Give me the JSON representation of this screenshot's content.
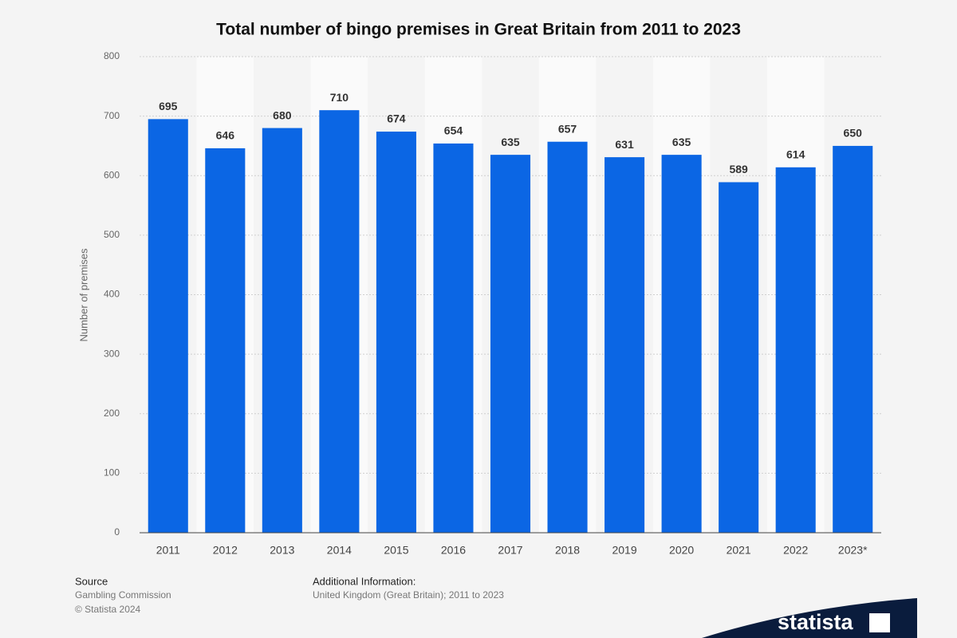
{
  "chart_data": {
    "type": "bar",
    "title": "Total number of bingo premises in Great Britain from 2011 to 2023",
    "y_label": "Number of premises",
    "categories": [
      "2011",
      "2012",
      "2013",
      "2014",
      "2015",
      "2016",
      "2017",
      "2018",
      "2019",
      "2020",
      "2021",
      "2022",
      "2023*"
    ],
    "values": [
      695,
      646,
      680,
      710,
      674,
      654,
      635,
      657,
      631,
      635,
      589,
      614,
      650
    ],
    "color": "#0b66e4",
    "ylim": [
      0,
      800
    ],
    "yticks": [
      0,
      100,
      200,
      300,
      400,
      500,
      600,
      700,
      800
    ],
    "grid": true
  },
  "footer": {
    "source_heading": "Source",
    "source": "Gambling Commission",
    "copyright": "© Statista 2024",
    "info_heading": "Additional Information:",
    "info": "United Kingdom (Great Britain); 2011 to 2023",
    "logo": "statista"
  }
}
